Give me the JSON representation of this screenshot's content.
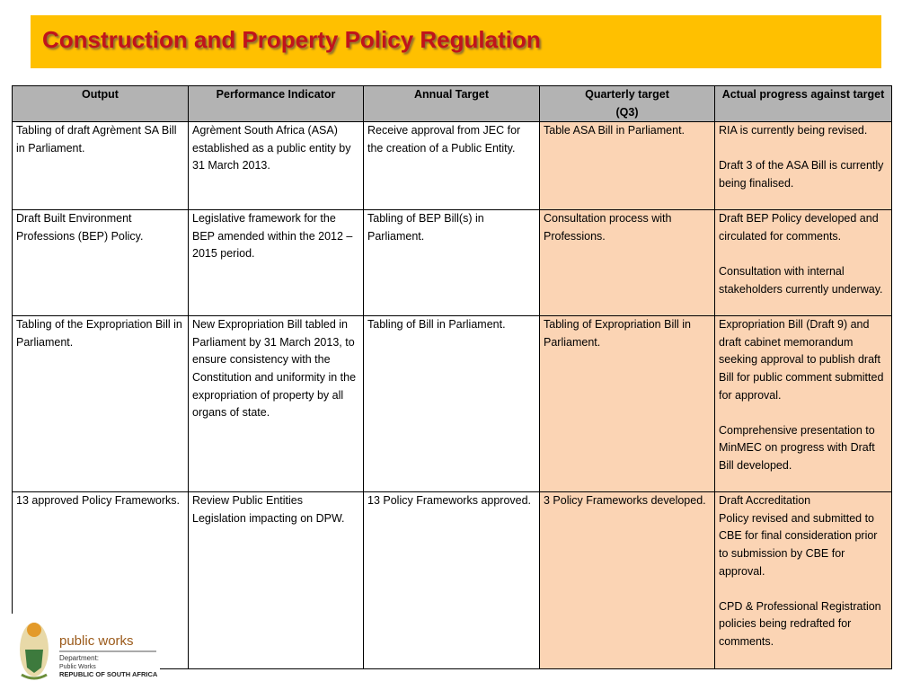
{
  "header": {
    "title": "Construction and Property Policy Regulation"
  },
  "table": {
    "columns": [
      [
        "Output"
      ],
      [
        "Performance Indicator"
      ],
      [
        "Annual Target"
      ],
      [
        "Quarterly target",
        "(Q3)"
      ],
      [
        "Actual progress against target"
      ]
    ],
    "rows": [
      [
        [
          [
            "Tabling of draft Agrèment SA Bill in Parliament."
          ]
        ],
        [
          [
            "Agrèment South Africa (ASA) established as a public entity by 31 March 2013."
          ]
        ],
        [
          [
            "Receive approval from JEC for the creation of a Public Entity."
          ]
        ],
        [
          [
            "Table ASA Bill in Parliament."
          ]
        ],
        [
          [
            "RIA is currently being revised."
          ],
          [
            "Draft 3 of the ASA Bill is currently being finalised."
          ]
        ]
      ],
      [
        [
          [
            "Draft Built Environment Professions (BEP) Policy."
          ]
        ],
        [
          [
            "Legislative framework for the BEP amended within the 2012 – 2015 period."
          ]
        ],
        [
          [
            "Tabling of BEP Bill(s) in Parliament."
          ]
        ],
        [
          [
            "Consultation process with Professions."
          ]
        ],
        [
          [
            "Draft BEP Policy developed and circulated for comments."
          ],
          [
            "Consultation with internal stakeholders currently underway."
          ]
        ]
      ],
      [
        [
          [
            "Tabling of the Expropriation Bill in Parliament."
          ]
        ],
        [
          [
            "New Expropriation Bill tabled in Parliament by 31 March 2013, to ensure consistency with the Constitution and uniformity in the expropriation of property by all organs of state."
          ]
        ],
        [
          [
            "Tabling of Bill in Parliament."
          ]
        ],
        [
          [
            "Tabling of Expropriation Bill in Parliament."
          ]
        ],
        [
          [
            "Expropriation Bill (Draft 9) and draft cabinet memorandum seeking approval to publish draft Bill for public comment submitted for approval."
          ],
          [
            "Comprehensive presentation to MinMEC on progress with Draft Bill developed."
          ]
        ]
      ],
      [
        [
          [
            "13 approved Policy Frameworks."
          ]
        ],
        [
          [
            "Review Public Entities Legislation impacting on DPW."
          ]
        ],
        [
          [
            "13 Policy Frameworks approved."
          ]
        ],
        [
          [
            "3 Policy Frameworks developed."
          ]
        ],
        [
          [
            "Draft Accreditation",
            "Policy revised and submitted to CBE for final consideration prior to submission by CBE for approval."
          ],
          [
            "CPD & Professional Registration policies being redrafted for comments."
          ]
        ]
      ]
    ]
  },
  "logo": {
    "name": "public works",
    "department": "Department:",
    "unit": "Public Works",
    "country": "REPUBLIC OF SOUTH AFRICA"
  }
}
